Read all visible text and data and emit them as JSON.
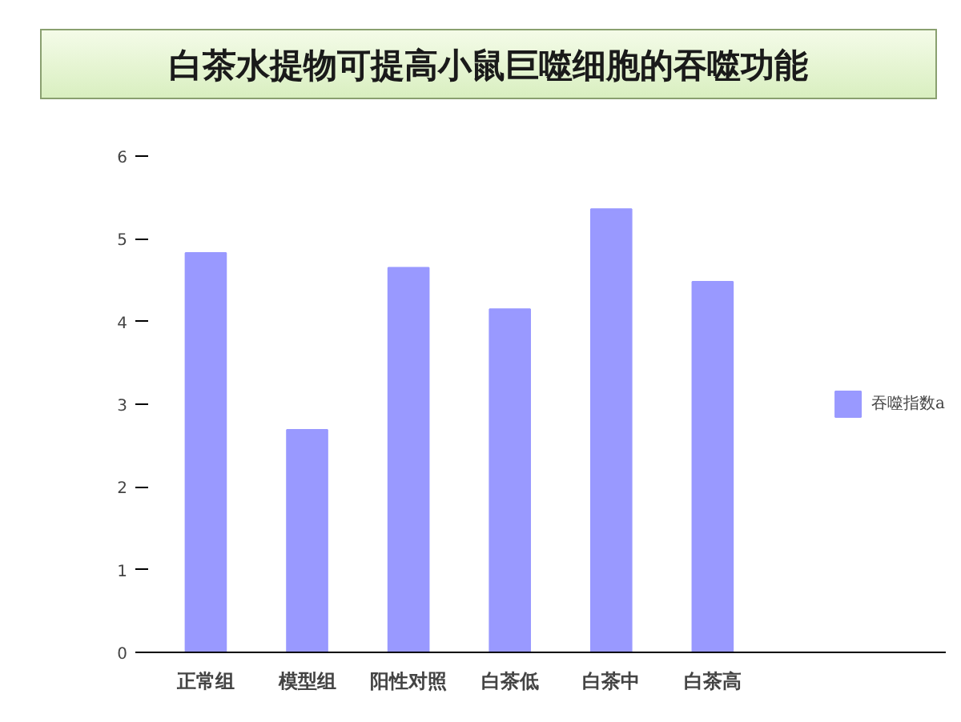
{
  "chart_data": {
    "type": "bar",
    "title": "白茶水提物可提高小鼠巨噬细胞的吞噬功能",
    "categories": [
      "正常组",
      "模型组",
      "阳性对照",
      "白茶低",
      "白茶中",
      "白茶高"
    ],
    "series": [
      {
        "name": "吞噬指数a",
        "color": "#9999ff",
        "values": [
          4.83,
          2.69,
          4.65,
          4.15,
          5.36,
          4.48
        ]
      }
    ],
    "ylim": [
      0,
      6
    ],
    "yticks": [
      0,
      1,
      2,
      3,
      4,
      5,
      6
    ],
    "grid": false,
    "legend": "right"
  }
}
